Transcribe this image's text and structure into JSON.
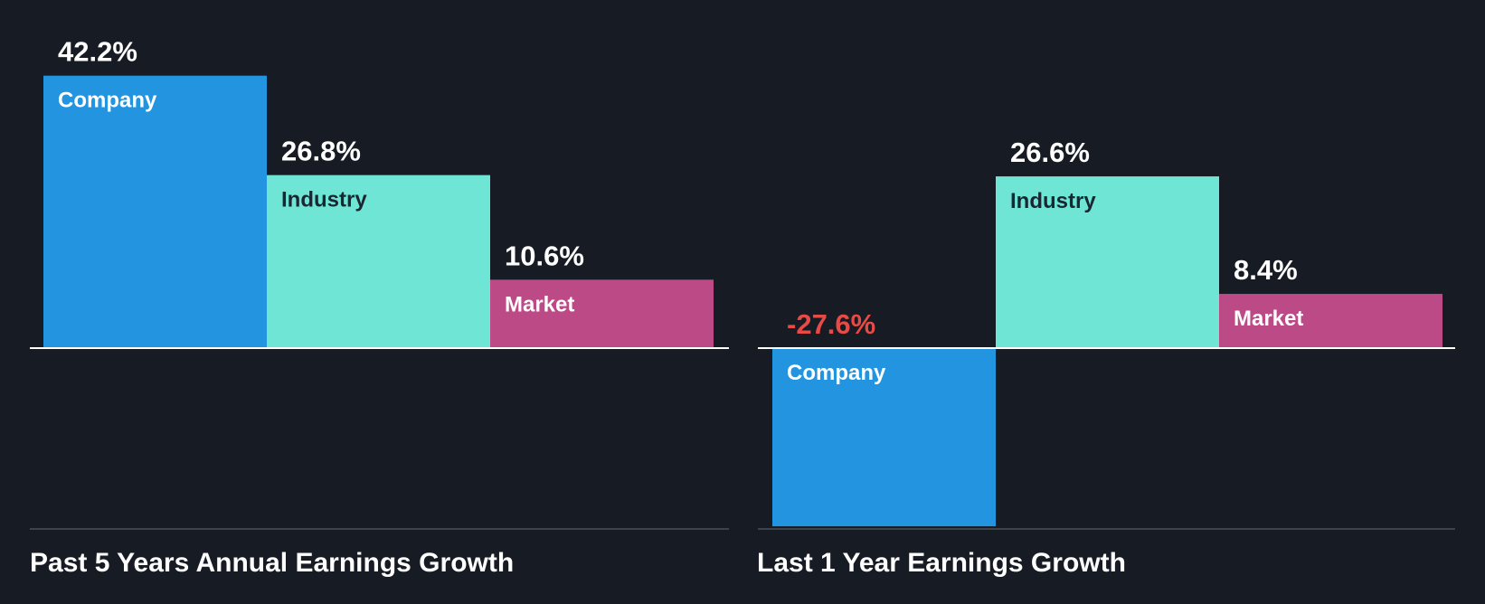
{
  "chart_data": [
    {
      "type": "bar",
      "title": "Past 5 Years Annual Earnings Growth",
      "categories": [
        "Company",
        "Industry",
        "Market"
      ],
      "values": [
        42.2,
        26.8,
        10.6
      ],
      "value_labels": [
        "42.2%",
        "26.8%",
        "10.6%"
      ],
      "unit": "%"
    },
    {
      "type": "bar",
      "title": "Last 1 Year Earnings Growth",
      "categories": [
        "Company",
        "Industry",
        "Market"
      ],
      "values": [
        -27.6,
        26.6,
        8.4
      ],
      "value_labels": [
        "-27.6%",
        "26.6%",
        "8.4%"
      ],
      "unit": "%"
    }
  ],
  "colors": {
    "background": "#161b24",
    "company": "#2394e0",
    "industry": "#6fe6d5",
    "market": "#bb4a87",
    "negative_value": "#e84b45",
    "label_on_dark": "#ffffff",
    "label_on_light": "#1b2633",
    "zero_line": "#ffffff",
    "baseline": "#3d434d"
  }
}
